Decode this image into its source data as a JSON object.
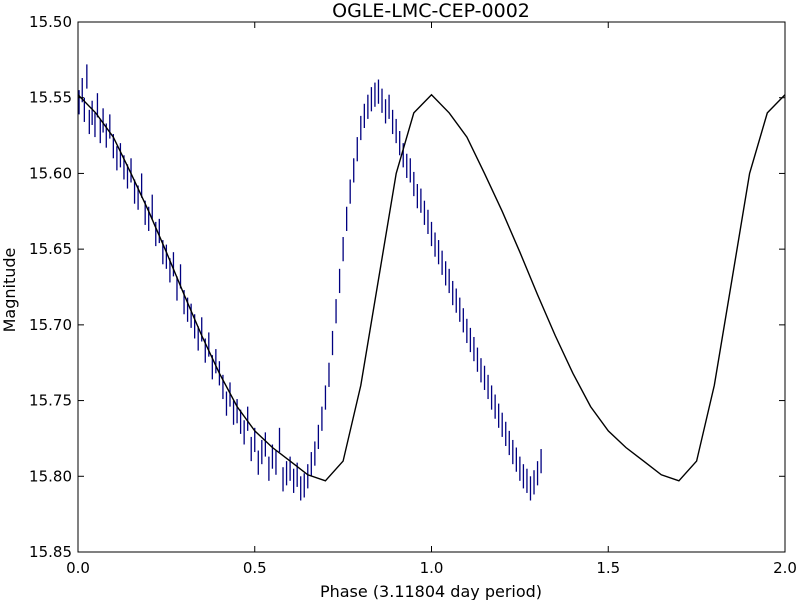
{
  "chart_data": {
    "type": "scatter",
    "title": "OGLE-LMC-CEP-0002",
    "xlabel": "Phase (3.11804 day period)",
    "ylabel": "Magnitude",
    "xlim": [
      0.0,
      2.0
    ],
    "ylim": [
      15.5,
      15.85
    ],
    "y_inverted": true,
    "grid": false,
    "x_ticks": [
      0.0,
      0.5,
      1.0,
      1.5,
      2.0
    ],
    "x_tick_labels": [
      "0.0",
      "0.5",
      "1.0",
      "1.5",
      "2.0"
    ],
    "y_ticks": [
      15.5,
      15.55,
      15.6,
      15.65,
      15.7,
      15.75,
      15.8,
      15.85
    ],
    "y_tick_labels": [
      "15.50",
      "15.55",
      "15.60",
      "15.65",
      "15.70",
      "15.75",
      "15.80",
      "15.85"
    ],
    "colors": {
      "points": "#000080",
      "model": "#000000",
      "axes": "#000000"
    },
    "series": [
      {
        "kind": "errorbar",
        "error": 0.008,
        "points": [
          [
            0.003,
            15.553
          ],
          [
            0.012,
            15.545
          ],
          [
            0.018,
            15.558
          ],
          [
            0.025,
            15.536
          ],
          [
            0.032,
            15.566
          ],
          [
            0.04,
            15.56
          ],
          [
            0.048,
            15.568
          ],
          [
            0.055,
            15.555
          ],
          [
            0.063,
            15.572
          ],
          [
            0.071,
            15.565
          ],
          [
            0.08,
            15.575
          ],
          [
            0.09,
            15.569
          ],
          [
            0.1,
            15.582
          ],
          [
            0.11,
            15.59
          ],
          [
            0.12,
            15.588
          ],
          [
            0.13,
            15.596
          ],
          [
            0.14,
            15.602
          ],
          [
            0.15,
            15.598
          ],
          [
            0.16,
            15.612
          ],
          [
            0.17,
            15.616
          ],
          [
            0.18,
            15.608
          ],
          [
            0.19,
            15.626
          ],
          [
            0.2,
            15.63
          ],
          [
            0.21,
            15.622
          ],
          [
            0.22,
            15.64
          ],
          [
            0.23,
            15.638
          ],
          [
            0.24,
            15.652
          ],
          [
            0.25,
            15.655
          ],
          [
            0.26,
            15.664
          ],
          [
            0.27,
            15.66
          ],
          [
            0.28,
            15.676
          ],
          [
            0.29,
            15.668
          ],
          [
            0.3,
            15.685
          ],
          [
            0.31,
            15.69
          ],
          [
            0.32,
            15.694
          ],
          [
            0.33,
            15.701
          ],
          [
            0.34,
            15.709
          ],
          [
            0.35,
            15.703
          ],
          [
            0.36,
            15.717
          ],
          [
            0.37,
            15.713
          ],
          [
            0.38,
            15.728
          ],
          [
            0.39,
            15.724
          ],
          [
            0.4,
            15.732
          ],
          [
            0.41,
            15.741
          ],
          [
            0.42,
            15.752
          ],
          [
            0.43,
            15.746
          ],
          [
            0.44,
            15.758
          ],
          [
            0.45,
            15.757
          ],
          [
            0.46,
            15.764
          ],
          [
            0.47,
            15.771
          ],
          [
            0.48,
            15.762
          ],
          [
            0.49,
            15.782
          ],
          [
            0.5,
            15.776
          ],
          [
            0.51,
            15.791
          ],
          [
            0.52,
            15.784
          ],
          [
            0.53,
            15.779
          ],
          [
            0.54,
            15.795
          ],
          [
            0.55,
            15.787
          ],
          [
            0.56,
            15.791
          ],
          [
            0.57,
            15.776
          ],
          [
            0.58,
            15.802
          ],
          [
            0.59,
            15.798
          ],
          [
            0.6,
            15.795
          ],
          [
            0.61,
            15.803
          ],
          [
            0.62,
            15.799
          ],
          [
            0.63,
            15.808
          ],
          [
            0.64,
            15.806
          ],
          [
            0.65,
            15.8
          ],
          [
            0.66,
            15.792
          ],
          [
            0.67,
            15.785
          ],
          [
            0.68,
            15.774
          ],
          [
            0.69,
            15.762
          ],
          [
            0.7,
            15.748
          ],
          [
            0.71,
            15.733
          ],
          [
            0.72,
            15.712
          ],
          [
            0.73,
            15.691
          ],
          [
            0.74,
            15.671
          ],
          [
            0.75,
            15.65
          ],
          [
            0.76,
            15.63
          ],
          [
            0.77,
            15.612
          ],
          [
            0.78,
            15.598
          ],
          [
            0.79,
            15.584
          ],
          [
            0.8,
            15.57
          ],
          [
            0.81,
            15.562
          ],
          [
            0.82,
            15.556
          ],
          [
            0.83,
            15.551
          ],
          [
            0.84,
            15.548
          ],
          [
            0.85,
            15.546
          ],
          [
            0.86,
            15.552
          ],
          [
            0.87,
            15.559
          ],
          [
            0.88,
            15.556
          ],
          [
            0.89,
            15.566
          ],
          [
            0.9,
            15.572
          ],
          [
            0.91,
            15.58
          ],
          [
            0.92,
            15.588
          ],
          [
            0.93,
            15.595
          ],
          [
            0.94,
            15.598
          ],
          [
            0.95,
            15.607
          ],
          [
            0.96,
            15.615
          ],
          [
            0.97,
            15.618
          ],
          [
            0.98,
            15.626
          ],
          [
            0.99,
            15.632
          ],
          [
            1.0,
            15.64
          ],
          [
            1.01,
            15.647
          ],
          [
            1.02,
            15.652
          ],
          [
            1.03,
            15.659
          ],
          [
            1.04,
            15.666
          ],
          [
            1.05,
            15.671
          ],
          [
            1.06,
            15.679
          ],
          [
            1.07,
            15.684
          ],
          [
            1.08,
            15.69
          ],
          [
            1.09,
            15.697
          ],
          [
            1.1,
            15.704
          ],
          [
            1.11,
            15.71
          ],
          [
            1.12,
            15.716
          ],
          [
            1.13,
            15.723
          ],
          [
            1.14,
            15.73
          ],
          [
            1.15,
            15.735
          ],
          [
            1.16,
            15.741
          ],
          [
            1.17,
            15.748
          ],
          [
            1.18,
            15.754
          ],
          [
            1.19,
            15.76
          ],
          [
            1.2,
            15.766
          ],
          [
            1.21,
            15.772
          ],
          [
            1.22,
            15.778
          ],
          [
            1.23,
            15.784
          ],
          [
            1.24,
            15.789
          ],
          [
            1.25,
            15.795
          ],
          [
            1.26,
            15.8
          ],
          [
            1.27,
            15.803
          ],
          [
            1.28,
            15.808
          ],
          [
            1.29,
            15.804
          ],
          [
            1.3,
            15.798
          ],
          [
            1.31,
            15.79
          ]
        ]
      },
      {
        "kind": "model_curve",
        "points": [
          [
            0.0,
            15.548
          ],
          [
            0.05,
            15.56
          ],
          [
            0.1,
            15.576
          ],
          [
            0.15,
            15.6
          ],
          [
            0.2,
            15.625
          ],
          [
            0.25,
            15.652
          ],
          [
            0.3,
            15.68
          ],
          [
            0.35,
            15.707
          ],
          [
            0.4,
            15.732
          ],
          [
            0.45,
            15.754
          ],
          [
            0.5,
            15.77
          ],
          [
            0.55,
            15.781
          ],
          [
            0.6,
            15.79
          ],
          [
            0.65,
            15.799
          ],
          [
            0.7,
            15.803
          ],
          [
            0.75,
            15.79
          ],
          [
            0.8,
            15.74
          ],
          [
            0.85,
            15.67
          ],
          [
            0.9,
            15.6
          ],
          [
            0.95,
            15.56
          ],
          [
            1.0,
            15.548
          ],
          [
            1.05,
            15.56
          ],
          [
            1.1,
            15.576
          ],
          [
            1.15,
            15.6
          ],
          [
            1.2,
            15.625
          ],
          [
            1.25,
            15.652
          ],
          [
            1.3,
            15.68
          ],
          [
            1.35,
            15.707
          ],
          [
            1.4,
            15.732
          ],
          [
            1.45,
            15.754
          ],
          [
            1.5,
            15.77
          ],
          [
            1.55,
            15.781
          ],
          [
            1.6,
            15.79
          ],
          [
            1.65,
            15.799
          ],
          [
            1.7,
            15.803
          ],
          [
            1.75,
            15.79
          ],
          [
            1.8,
            15.74
          ],
          [
            1.85,
            15.67
          ],
          [
            1.9,
            15.6
          ],
          [
            1.95,
            15.56
          ],
          [
            2.0,
            15.548
          ]
        ]
      }
    ]
  }
}
